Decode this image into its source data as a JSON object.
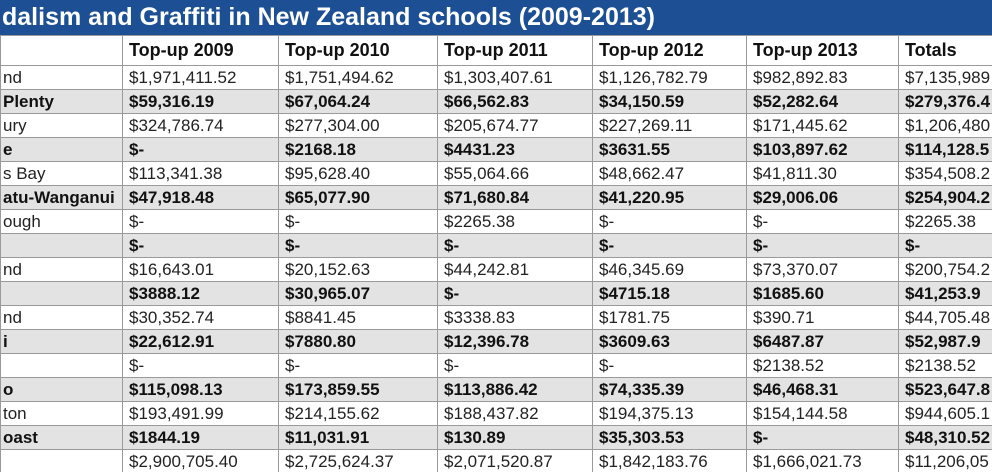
{
  "header": {
    "title": "dalism and Graffiti in New Zealand schools (2009-2013)"
  },
  "table": {
    "columns": [
      "Top-up 2009",
      "Top-up 2010",
      "Top-up 2011",
      "Top-up 2012",
      "Top-up 2013",
      "Totals"
    ],
    "rows": [
      {
        "label": "nd",
        "cells": [
          "$1,971,411.52",
          "$1,751,494.62",
          "$1,303,407.61",
          "$1,126,782.79",
          "$982,892.83",
          "$7,135,989"
        ]
      },
      {
        "label": "Plenty",
        "cells": [
          "$59,316.19",
          "$67,064.24",
          "$66,562.83",
          "$34,150.59",
          "$52,282.64",
          "$279,376.4"
        ]
      },
      {
        "label": "ury",
        "cells": [
          "$324,786.74",
          "$277,304.00",
          "$205,674.77",
          "$227,269.11",
          "$171,445.62",
          "$1,206,480"
        ]
      },
      {
        "label": "e",
        "cells": [
          "$-",
          "$2168.18",
          "$4431.23",
          "$3631.55",
          "$103,897.62",
          "$114,128.5"
        ]
      },
      {
        "label": "s Bay",
        "cells": [
          "$113,341.38",
          "$95,628.40",
          "$55,064.66",
          "$48,662.47",
          "$41,811.30",
          "$354,508.2"
        ]
      },
      {
        "label": "atu-Wanganui",
        "cells": [
          "$47,918.48",
          "$65,077.90",
          "$71,680.84",
          "$41,220.95",
          "$29,006.06",
          "$254,904.2"
        ]
      },
      {
        "label": "ough",
        "cells": [
          "$-",
          "$-",
          "$2265.38",
          "$-",
          "$-",
          "$2265.38"
        ]
      },
      {
        "label": null,
        "cells": [
          "$-",
          "$-",
          "$-",
          "$-",
          "$-",
          "$-"
        ]
      },
      {
        "label": "nd",
        "cells": [
          "$16,643.01",
          "$20,152.63",
          "$44,242.81",
          "$46,345.69",
          "$73,370.07",
          "$200,754.2"
        ]
      },
      {
        "label": null,
        "cells": [
          "$3888.12",
          "$30,965.07",
          "$-",
          "$4715.18",
          "$1685.60",
          "$41,253.9"
        ]
      },
      {
        "label": "nd",
        "cells": [
          "$30,352.74",
          "$8841.45",
          "$3338.83",
          "$1781.75",
          "$390.71",
          "$44,705.48"
        ]
      },
      {
        "label": "i",
        "cells": [
          "$22,612.91",
          "$7880.80",
          "$12,396.78",
          "$3609.63",
          "$6487.87",
          "$52,987.9"
        ]
      },
      {
        "label": null,
        "cells": [
          "$-",
          "$-",
          "$-",
          "$-",
          "$2138.52",
          "$2138.52"
        ]
      },
      {
        "label": "o",
        "cells": [
          "$115,098.13",
          "$173,859.55",
          "$113,886.42",
          "$74,335.39",
          "$46,468.31",
          "$523,647.8"
        ]
      },
      {
        "label": "ton",
        "cells": [
          "$193,491.99",
          "$214,155.62",
          "$188,437.82",
          "$194,375.13",
          "$154,144.58",
          "$944,605.1"
        ]
      },
      {
        "label": "oast",
        "cells": [
          "$1844.19",
          "$11,031.91",
          "$130.89",
          "$35,303.53",
          "$-",
          "$48,310.52"
        ]
      },
      {
        "label": null,
        "cells": [
          "$2,900,705.40",
          "$2,725,624.37",
          "$2,071,520.87",
          "$1,842,183.76",
          "$1,666,021.73",
          "$11,206,05"
        ]
      }
    ]
  }
}
